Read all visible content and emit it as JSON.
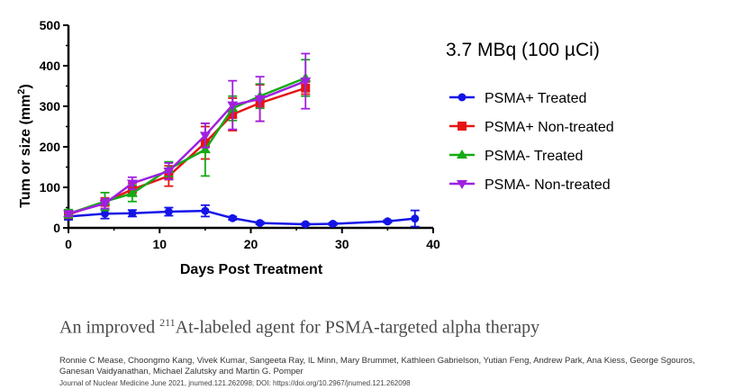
{
  "chart_data": {
    "type": "line",
    "title": "3.7 MBq (100 µCi)",
    "xlabel": "Days Post Treatment",
    "ylabel_main": "Tum or size (mm",
    "ylabel_sup": "2",
    "ylabel_close": ")",
    "xlim": [
      0,
      40
    ],
    "ylim": [
      0,
      500
    ],
    "xticks": [
      "0",
      "10",
      "20",
      "30",
      "40"
    ],
    "yticks": [
      "0",
      "100",
      "200",
      "300",
      "400",
      "500"
    ],
    "legend_position": "right",
    "series": [
      {
        "name": "PSMA+ Treated",
        "color": "#1414e6",
        "marker": "circle",
        "x": [
          0,
          4,
          7,
          11,
          15,
          18,
          21,
          26,
          29,
          35,
          38
        ],
        "y": [
          28,
          35,
          36,
          40,
          42,
          24,
          12,
          9,
          10,
          16,
          23
        ],
        "err": [
          8,
          12,
          8,
          10,
          14,
          4,
          3,
          2,
          3,
          3,
          20
        ]
      },
      {
        "name": "PSMA+ Non-treated",
        "color": "#e61414",
        "marker": "square",
        "x": [
          0,
          4,
          7,
          11,
          15,
          18,
          21,
          26
        ],
        "y": [
          33,
          64,
          95,
          128,
          210,
          280,
          308,
          345
        ],
        "err": [
          5,
          10,
          15,
          25,
          40,
          40,
          45,
          15
        ]
      },
      {
        "name": "PSMA- Treated",
        "color": "#14aa14",
        "marker": "triangle-up",
        "x": [
          0,
          4,
          7,
          11,
          15,
          18,
          21,
          26
        ],
        "y": [
          35,
          65,
          85,
          145,
          193,
          295,
          325,
          370
        ],
        "err": [
          10,
          22,
          20,
          18,
          65,
          30,
          30,
          45
        ]
      },
      {
        "name": "PSMA- Non-treated",
        "color": "#a020e0",
        "marker": "triangle-down",
        "x": [
          0,
          4,
          7,
          11,
          15,
          18,
          21,
          26
        ],
        "y": [
          35,
          60,
          110,
          140,
          228,
          303,
          318,
          362
        ],
        "err": [
          6,
          12,
          15,
          20,
          30,
          60,
          55,
          68
        ]
      }
    ]
  },
  "citation": {
    "title_prefix": "An improved ",
    "title_sup": "211",
    "title_rest": "At-labeled agent for PSMA-targeted alpha therapy",
    "authors": "Ronnie C Mease, Choongmo Kang, Vivek Kumar, Sangeeta Ray, IL Minn, Mary Brummet, Kathleen Gabrielson, Yutian Feng, Andrew Park, Ana Kiess, George Sgouros, Ganesan Vaidyanathan, Michael Zalutsky and Martin G. Pomper",
    "journal": "Journal of Nuclear Medicine June 2021, jnumed.121.262098; DOI: https://doi.org/10.2967/jnumed.121.262098"
  }
}
